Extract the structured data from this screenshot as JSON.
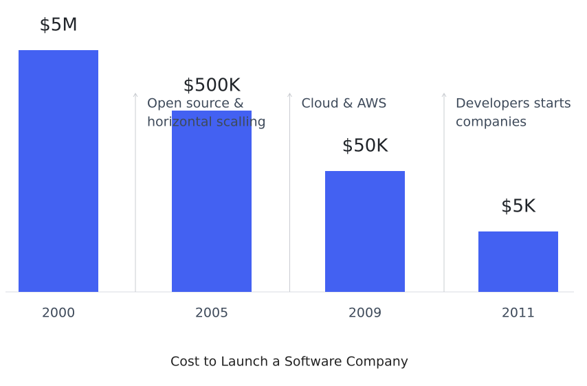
{
  "chart_data": {
    "type": "bar",
    "title": "Cost to Launch a Software Company",
    "categories": [
      "2000",
      "2005",
      "2009",
      "2011"
    ],
    "values": [
      5000000,
      500000,
      50000,
      5000
    ],
    "value_labels": [
      "$5M",
      "$500K",
      "$50K",
      "$5K"
    ],
    "color": "#4361f2",
    "log_scale": true,
    "annotations": [
      {
        "lines": [
          "Open source &",
          "horizontal scalling"
        ]
      },
      {
        "lines": [
          "Cloud & AWS"
        ]
      },
      {
        "lines": [
          "Developers starts",
          "companies"
        ]
      }
    ]
  }
}
